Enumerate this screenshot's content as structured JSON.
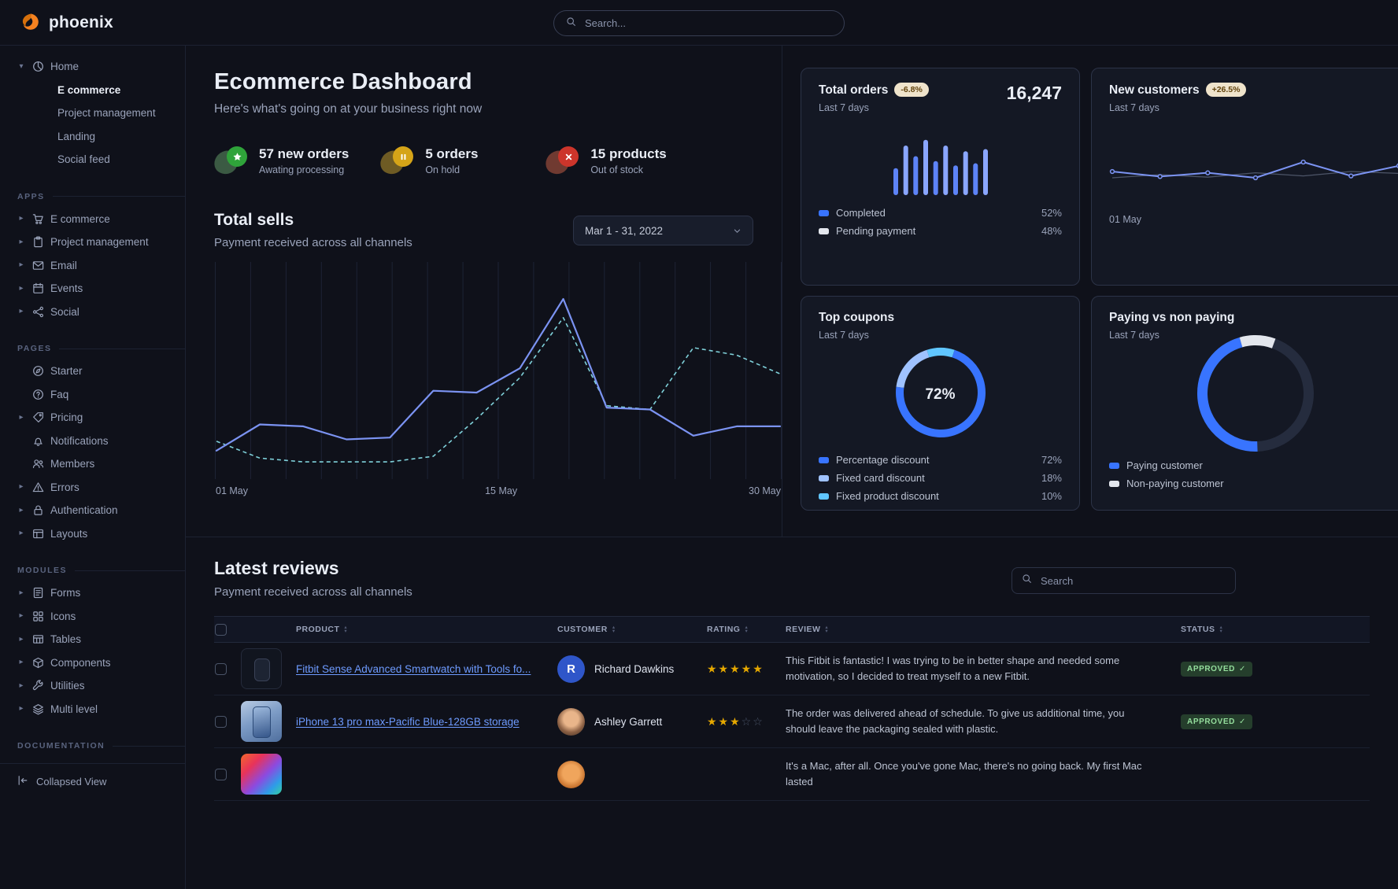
{
  "brand": {
    "name": "phoenix"
  },
  "navbar": {
    "search_placeholder": "Search..."
  },
  "sidebar": {
    "home": {
      "label": "Home",
      "icon": "chart-pie",
      "children": [
        {
          "label": "E commerce",
          "active": true
        },
        {
          "label": "Project management",
          "active": false
        },
        {
          "label": "Landing",
          "active": false
        },
        {
          "label": "Social feed",
          "active": false
        }
      ]
    },
    "sections": [
      {
        "title": "APPS",
        "items": [
          {
            "label": "E commerce",
            "icon": "cart",
            "chevron": true
          },
          {
            "label": "Project management",
            "icon": "clipboard",
            "chevron": true
          },
          {
            "label": "Email",
            "icon": "mail",
            "chevron": true
          },
          {
            "label": "Events",
            "icon": "calendar",
            "chevron": true
          },
          {
            "label": "Social",
            "icon": "share",
            "chevron": true
          }
        ]
      },
      {
        "title": "PAGES",
        "items": [
          {
            "label": "Starter",
            "icon": "compass",
            "chevron": false
          },
          {
            "label": "Faq",
            "icon": "question",
            "chevron": false
          },
          {
            "label": "Pricing",
            "icon": "tag",
            "chevron": true
          },
          {
            "label": "Notifications",
            "icon": "bell",
            "chevron": false
          },
          {
            "label": "Members",
            "icon": "users",
            "chevron": false
          },
          {
            "label": "Errors",
            "icon": "warning",
            "chevron": true
          },
          {
            "label": "Authentication",
            "icon": "lock",
            "chevron": true
          },
          {
            "label": "Layouts",
            "icon": "layout",
            "chevron": true
          }
        ]
      },
      {
        "title": "MODULES",
        "items": [
          {
            "label": "Forms",
            "icon": "form",
            "chevron": true
          },
          {
            "label": "Icons",
            "icon": "grid",
            "chevron": true
          },
          {
            "label": "Tables",
            "icon": "table",
            "chevron": true
          },
          {
            "label": "Components",
            "icon": "box",
            "chevron": true
          },
          {
            "label": "Utilities",
            "icon": "wrench",
            "chevron": true
          },
          {
            "label": "Multi level",
            "icon": "layers",
            "chevron": true
          }
        ]
      },
      {
        "title": "DOCUMENTATION",
        "items": []
      }
    ],
    "footer_label": "Collapsed View"
  },
  "page": {
    "title": "Ecommerce Dashboard",
    "subtitle": "Here's what's going on at your business right now"
  },
  "stats": [
    {
      "value": "57 new orders",
      "caption": "Awating processing",
      "icon": "star",
      "theme": "success"
    },
    {
      "value": "5 orders",
      "caption": "On hold",
      "icon": "pause",
      "theme": "warning"
    },
    {
      "value": "15 products",
      "caption": "Out of stock",
      "icon": "x",
      "theme": "danger"
    }
  ],
  "total_sells": {
    "title": "Total sells",
    "subtitle": "Payment received across all channels",
    "date_range": "Mar 1 - 31, 2022"
  },
  "summary_cards": {
    "total_orders": {
      "title": "Total orders",
      "badge": "-6.8%",
      "period": "Last 7 days",
      "value": "16,247",
      "legend": [
        {
          "label": "Completed",
          "value": "52%",
          "color": "#3874ff"
        },
        {
          "label": "Pending payment",
          "value": "48%",
          "color": "#e3e6ed"
        }
      ]
    },
    "new_customers": {
      "title": "New customers",
      "badge": "+26.5%",
      "period": "Last 7 days",
      "x_label": "01 May"
    },
    "top_coupons": {
      "title": "Top coupons",
      "period": "Last 7 days",
      "center_value": "72%",
      "legend": [
        {
          "label": "Percentage discount",
          "value": "72%",
          "color": "#3874ff"
        },
        {
          "label": "Fixed card discount",
          "value": "18%",
          "color": "#9fc2ff"
        },
        {
          "label": "Fixed product discount",
          "value": "10%",
          "color": "#60c6ff"
        }
      ]
    },
    "paying": {
      "title": "Paying vs non paying",
      "period": "Last 7 days",
      "legend": [
        {
          "label": "Paying customer",
          "color": "#3874ff"
        },
        {
          "label": "Non-paying customer",
          "color": "#e3e6ed"
        }
      ]
    }
  },
  "reviews": {
    "title": "Latest reviews",
    "subtitle": "Payment received across all channels",
    "search_placeholder": "Search",
    "columns": [
      {
        "label": "PRODUCT"
      },
      {
        "label": "CUSTOMER"
      },
      {
        "label": "RATING"
      },
      {
        "label": "REVIEW"
      },
      {
        "label": "STATUS"
      }
    ],
    "rows": [
      {
        "product": "Fitbit Sense Advanced Smartwatch with Tools fo...",
        "thumb": "fitbit",
        "customer": "Richard Dawkins",
        "avatar": "initial",
        "avatar_initial": "R",
        "rating": 5,
        "review": "This Fitbit is fantastic! I was trying to be in better shape and needed some motivation, so I decided to treat myself to a new Fitbit.",
        "status": "APPROVED"
      },
      {
        "product": "iPhone 13 pro max-Pacific Blue-128GB storage",
        "thumb": "iphone",
        "customer": "Ashley Garrett",
        "avatar": "photo-1",
        "rating": 3,
        "review": "The order was delivered ahead of schedule. To give us additional time, you should leave the packaging sealed with plastic.",
        "status": "APPROVED"
      },
      {
        "product": "",
        "thumb": "macbook",
        "customer": "",
        "avatar": "photo-2",
        "rating": null,
        "review": "It's a Mac, after all. Once you've gone Mac, there's no going back. My first Mac lasted",
        "status": ""
      }
    ]
  },
  "chart_data": [
    {
      "id": "total_sells",
      "type": "line",
      "title": "Total sells",
      "x_ticks": [
        "01 May",
        "15 May",
        "30 May"
      ],
      "ylim": [
        0,
        100
      ],
      "grid": "vertical",
      "series": [
        {
          "name": "current",
          "style": "solid",
          "color": "#7b93f2",
          "values": [
            11,
            25,
            24,
            17,
            18,
            43,
            42,
            55,
            92,
            34,
            33,
            19,
            24,
            24
          ]
        },
        {
          "name": "previous",
          "style": "dashed",
          "color": "#7fd1da",
          "values": [
            16,
            7,
            5,
            5,
            5,
            8,
            28,
            50,
            82,
            35,
            33,
            66,
            62,
            52
          ]
        }
      ]
    },
    {
      "id": "total_orders",
      "type": "bar",
      "values": [
        38,
        70,
        55,
        78,
        48,
        70,
        42,
        62,
        45,
        65
      ],
      "colors": [
        "#5d83f7",
        "#8aa6ff"
      ]
    },
    {
      "id": "new_customers",
      "type": "line",
      "x_ticks": [
        "01 May"
      ],
      "series": [
        {
          "name": "secondary",
          "color": "#4d5568",
          "values": [
            35,
            40,
            36,
            43,
            38,
            45,
            42
          ]
        },
        {
          "name": "primary",
          "color": "#7b93f2",
          "values": [
            45,
            37,
            43,
            35,
            60,
            38,
            54
          ]
        }
      ]
    },
    {
      "id": "top_coupons",
      "type": "donut",
      "center_label": "72%",
      "segments": [
        {
          "label": "Percentage discount",
          "value": 72,
          "color": "#3874ff"
        },
        {
          "label": "Fixed card discount",
          "value": 18,
          "color": "#9fc2ff"
        },
        {
          "label": "Fixed product discount",
          "value": 10,
          "color": "#60c6ff"
        }
      ]
    },
    {
      "id": "paying_vs_non_paying",
      "type": "donut",
      "start_deg": 88,
      "track": "#252c3e",
      "segments": [
        {
          "label": "Paying customer",
          "color": "#3874ff",
          "sweep_deg": 166
        },
        {
          "label": "Non-paying customer",
          "color": "#e3e6ed",
          "sweep_deg": 36
        }
      ]
    }
  ]
}
